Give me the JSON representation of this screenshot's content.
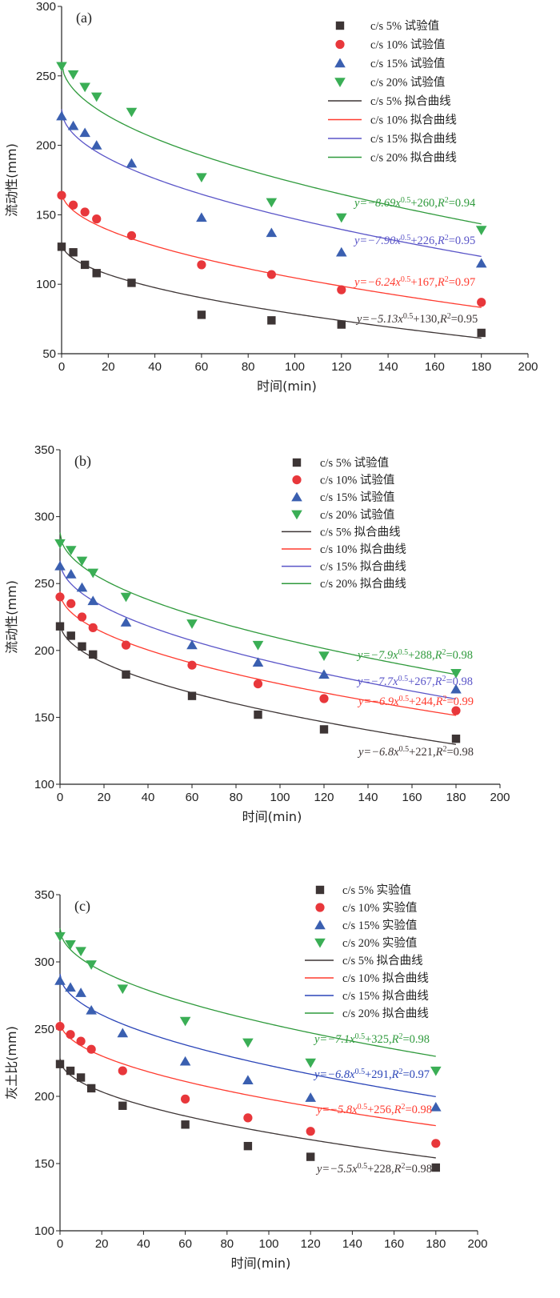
{
  "chart_data": [
    {
      "type": "scatter",
      "panel_label": "(a)",
      "xlabel": "时间(min)",
      "ylabel": "流动性(mm)",
      "xlim": [
        0,
        200
      ],
      "ylim": [
        50,
        300
      ],
      "xticks": [
        0,
        20,
        40,
        60,
        80,
        100,
        120,
        140,
        160,
        180,
        200
      ],
      "yticks": [
        50,
        100,
        150,
        200,
        250,
        300
      ],
      "legend_position": "top-right",
      "series": [
        {
          "name": "c/s 5%  试验值",
          "marker": "square",
          "color": "#3d3535",
          "x": [
            0,
            5,
            10,
            15,
            30,
            60,
            90,
            120,
            180
          ],
          "y": [
            127,
            123,
            114,
            108,
            101,
            78,
            74,
            71,
            65
          ]
        },
        {
          "name": "c/s 10% 试验值",
          "marker": "circle",
          "color": "#e8373b",
          "x": [
            0,
            5,
            10,
            15,
            30,
            60,
            90,
            120,
            180
          ],
          "y": [
            164,
            157,
            152,
            147,
            135,
            114,
            107,
            96,
            87
          ]
        },
        {
          "name": "c/s 15% 试验值",
          "marker": "triangle-up",
          "color": "#3a5fb0",
          "x": [
            0,
            5,
            10,
            15,
            30,
            60,
            90,
            120,
            180
          ],
          "y": [
            221,
            214,
            209,
            200,
            187,
            148,
            137,
            123,
            115
          ]
        },
        {
          "name": "c/s 20% 试验值",
          "marker": "triangle-down",
          "color": "#3aae55",
          "x": [
            0,
            5,
            10,
            15,
            30,
            60,
            90,
            120,
            180
          ],
          "y": [
            257,
            251,
            242,
            235,
            224,
            177,
            159,
            148,
            139
          ]
        }
      ],
      "fits": [
        {
          "name": "c/s 5%  拟合曲线",
          "color": "#3d3535",
          "a": -5.13,
          "b": 130,
          "equation": {
            "prefix": "y=−5.13x",
            "exp": "0.5",
            "mid": "+130,",
            "r": "R",
            "r_exp": "2",
            "suffix": "=0.95"
          }
        },
        {
          "name": "c/s 10% 拟合曲线",
          "color": "#ff3b2f",
          "a": -6.24,
          "b": 167,
          "equation": {
            "prefix": "y=−6.24x",
            "exp": "0.5",
            "mid": "+167,",
            "r": "R",
            "r_exp": "2",
            "suffix": "=0.97"
          }
        },
        {
          "name": "c/s 15% 拟合曲线",
          "color": "#5a55c8",
          "a": -7.9,
          "b": 226,
          "equation": {
            "prefix": "y=−7.90x",
            "exp": "0.5",
            "mid": "+226,",
            "r": "R",
            "r_exp": "2",
            "suffix": "=0.95"
          }
        },
        {
          "name": "c/s 20% 拟合曲线",
          "color": "#2f9a3c",
          "a": -8.69,
          "b": 260,
          "equation": {
            "prefix": "y=−8.69x",
            "exp": "0.5",
            "mid": "+260,",
            "r": "R",
            "r_exp": "2",
            "suffix": "=0.94"
          }
        }
      ]
    },
    {
      "type": "scatter",
      "panel_label": "(b)",
      "xlabel": "时间(min)",
      "ylabel": "流动性(mm)",
      "xlim": [
        0,
        200
      ],
      "ylim": [
        100,
        350
      ],
      "xticks": [
        0,
        20,
        40,
        60,
        80,
        100,
        120,
        140,
        160,
        180,
        200
      ],
      "yticks": [
        100,
        150,
        200,
        250,
        300,
        350
      ],
      "legend_position": "top-right",
      "series": [
        {
          "name": "c/s 5%  试验值",
          "marker": "square",
          "color": "#3d3535",
          "x": [
            0,
            5,
            10,
            15,
            30,
            60,
            90,
            120,
            180
          ],
          "y": [
            218,
            211,
            203,
            197,
            182,
            166,
            152,
            141,
            134
          ]
        },
        {
          "name": "c/s 10% 试验值",
          "marker": "circle",
          "color": "#e8373b",
          "x": [
            0,
            5,
            10,
            15,
            30,
            60,
            90,
            120,
            180
          ],
          "y": [
            240,
            235,
            225,
            217,
            204,
            189,
            175,
            164,
            155
          ]
        },
        {
          "name": "c/s 15% 试验值",
          "marker": "triangle-up",
          "color": "#3a5fb0",
          "x": [
            0,
            5,
            10,
            15,
            30,
            60,
            90,
            120,
            180
          ],
          "y": [
            263,
            257,
            247,
            237,
            221,
            204,
            191,
            182,
            171
          ]
        },
        {
          "name": "c/s 20% 试验值",
          "marker": "triangle-down",
          "color": "#3aae55",
          "x": [
            0,
            5,
            10,
            15,
            30,
            60,
            90,
            120,
            180
          ],
          "y": [
            280,
            275,
            267,
            258,
            240,
            220,
            204,
            196,
            183
          ]
        }
      ],
      "fits": [
        {
          "name": "c/s 5%  拟合曲线",
          "color": "#3d3535",
          "a": -6.8,
          "b": 221,
          "equation": {
            "prefix": "y=−6.8x",
            "exp": "0.5",
            "mid": "+221,",
            "r": "R",
            "r_exp": "2",
            "suffix": "=0.98"
          }
        },
        {
          "name": "c/s 10% 拟合曲线",
          "color": "#ff3b2f",
          "a": -6.9,
          "b": 244,
          "equation": {
            "prefix": "y=−6.9x",
            "exp": "0.5",
            "mid": "+244,",
            "r": "R",
            "r_exp": "2",
            "suffix": "=0.99"
          }
        },
        {
          "name": "c/s 15% 拟合曲线",
          "color": "#5a55c8",
          "a": -7.7,
          "b": 267,
          "equation": {
            "prefix": "y=−7.7x",
            "exp": "0.5",
            "mid": "+267,",
            "r": "R",
            "r_exp": "2",
            "suffix": "=0.98"
          }
        },
        {
          "name": "c/s 20% 拟合曲线",
          "color": "#2f9a3c",
          "a": -7.9,
          "b": 288,
          "equation": {
            "prefix": "y=−7.9x",
            "exp": "0.5",
            "mid": "+288,",
            "r": "R",
            "r_exp": "2",
            "suffix": "=0.98"
          }
        }
      ]
    },
    {
      "type": "scatter",
      "panel_label": "(c)",
      "xlabel": "时间(min)",
      "ylabel": "灰土比(mm)",
      "xlim": [
        0,
        200
      ],
      "ylim": [
        100,
        350
      ],
      "xticks": [
        0,
        20,
        40,
        60,
        80,
        100,
        120,
        140,
        160,
        180,
        200
      ],
      "yticks": [
        100,
        150,
        200,
        250,
        300,
        350
      ],
      "legend_position": "top-right",
      "series": [
        {
          "name": "c/s 5%  实验值",
          "marker": "square",
          "color": "#3d3535",
          "x": [
            0,
            5,
            10,
            15,
            30,
            60,
            90,
            120,
            180
          ],
          "y": [
            224,
            219,
            214,
            206,
            193,
            179,
            163,
            155,
            147
          ]
        },
        {
          "name": "c/s 10% 实验值",
          "marker": "circle",
          "color": "#e8373b",
          "x": [
            0,
            5,
            10,
            15,
            30,
            60,
            90,
            120,
            180
          ],
          "y": [
            252,
            246,
            241,
            235,
            219,
            198,
            184,
            174,
            165
          ]
        },
        {
          "name": "c/s 15% 实验值",
          "marker": "triangle-up",
          "color": "#3a5fb0",
          "x": [
            0,
            5,
            10,
            15,
            30,
            60,
            90,
            120,
            180
          ],
          "y": [
            286,
            281,
            277,
            264,
            247,
            226,
            212,
            199,
            192
          ]
        },
        {
          "name": "c/s 20% 实验值",
          "marker": "triangle-down",
          "color": "#3aae55",
          "x": [
            0,
            5,
            10,
            15,
            30,
            60,
            90,
            120,
            180
          ],
          "y": [
            319,
            313,
            308,
            298,
            280,
            256,
            240,
            225,
            219
          ]
        }
      ],
      "fits": [
        {
          "name": "c/s 5%  拟合曲线",
          "color": "#3d3535",
          "a": -5.5,
          "b": 228,
          "equation": {
            "prefix": "y=−5.5x",
            "exp": "0.5",
            "mid": "+228,",
            "r": "R",
            "r_exp": "2",
            "suffix": "=0.98"
          }
        },
        {
          "name": "c/s 10% 拟合曲线",
          "color": "#ff3b2f",
          "a": -5.8,
          "b": 256,
          "equation": {
            "prefix": "y=−5.8x",
            "exp": "0.5",
            "mid": "+256,",
            "r": "R",
            "r_exp": "2",
            "suffix": "=0.98"
          }
        },
        {
          "name": "c/s 15% 拟合曲线",
          "color": "#2b45b8",
          "a": -6.8,
          "b": 291,
          "equation": {
            "prefix": "y=−6.8x",
            "exp": "0.5",
            "mid": "+291,",
            "r": "R",
            "r_exp": "2",
            "suffix": "=0.97"
          }
        },
        {
          "name": "c/s 20% 拟合曲线",
          "color": "#2f9a3c",
          "a": -7.1,
          "b": 325,
          "equation": {
            "prefix": "y=−7.1x",
            "exp": "0.5",
            "mid": "+325,",
            "r": "R",
            "r_exp": "2",
            "suffix": "=0.98"
          }
        }
      ]
    }
  ]
}
